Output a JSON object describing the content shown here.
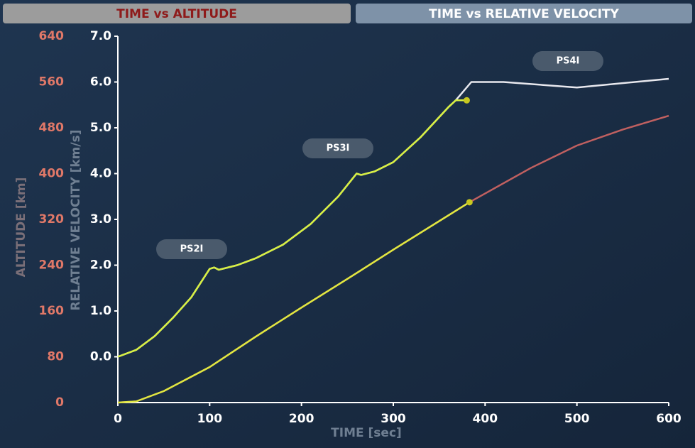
{
  "tabs": [
    "TIME vs ALTITUDE",
    "TIME vs RELATIVE VELOCITY"
  ],
  "chart_data": {
    "type": "line",
    "xlabel": "TIME [sec]",
    "ylabel": "ALTITUDE [km]",
    "y2label": "RELATIVE VELOCITY [km/s]",
    "annotations": [
      "PS2I",
      "PS3I",
      "PS4I"
    ],
    "xlim": [
      0,
      600
    ],
    "xticks": [
      0,
      100,
      200,
      300,
      400,
      500,
      600
    ],
    "ylim": [
      0,
      640
    ],
    "yticks": [
      0,
      80,
      160,
      240,
      320,
      400,
      480,
      560,
      640
    ],
    "y2lim": [
      -1.0,
      7.0
    ],
    "y2ticks": [
      {
        "value": 0,
        "label": "0.0"
      },
      {
        "value": 1,
        "label": "1.0"
      },
      {
        "value": 2,
        "label": "2.0"
      },
      {
        "value": 3,
        "label": "3.0"
      },
      {
        "value": 4,
        "label": "4.0"
      },
      {
        "value": 5,
        "label": "5.0"
      },
      {
        "value": 6,
        "label": "6.0"
      },
      {
        "value": 7,
        "label": "7.0"
      }
    ],
    "series": [
      {
        "color": "#e8e8ee",
        "axis": "y2",
        "x": [
          0,
          20,
          40,
          60,
          80,
          100,
          105,
          110,
          130,
          150,
          180,
          210,
          240,
          260,
          265,
          280,
          300,
          330,
          360,
          368,
          385,
          420,
          500,
          600
        ],
        "values": [
          0.0,
          0.15,
          0.45,
          0.85,
          1.3,
          1.92,
          1.95,
          1.9,
          2.0,
          2.15,
          2.45,
          2.9,
          3.5,
          4.0,
          3.97,
          4.05,
          4.25,
          4.8,
          5.45,
          5.6,
          6.0,
          6.0,
          5.88,
          6.07
        ]
      },
      {
        "color": "#d8f040",
        "axis": "y2",
        "x": [
          0,
          20,
          40,
          60,
          80,
          100,
          105,
          110,
          130,
          150,
          180,
          210,
          240,
          260,
          265,
          280,
          300,
          330,
          360,
          368,
          380
        ],
        "values": [
          0.0,
          0.15,
          0.45,
          0.85,
          1.3,
          1.92,
          1.95,
          1.9,
          2.0,
          2.15,
          2.45,
          2.9,
          3.5,
          4.0,
          3.97,
          4.05,
          4.25,
          4.8,
          5.45,
          5.6,
          5.6
        ]
      },
      {
        "color": "#c06060",
        "x": [
          0,
          20,
          50,
          100,
          150,
          200,
          250,
          300,
          383,
          450,
          500,
          550,
          600
        ],
        "values": [
          0,
          2,
          20,
          62,
          115,
          166,
          216,
          267,
          350,
          410,
          449,
          477,
          501
        ]
      },
      {
        "color": "#e0e840",
        "x": [
          0,
          20,
          50,
          100,
          150,
          200,
          250,
          300,
          383
        ],
        "values": [
          0,
          2,
          20,
          62,
          115,
          166,
          216,
          267,
          350
        ]
      }
    ]
  }
}
